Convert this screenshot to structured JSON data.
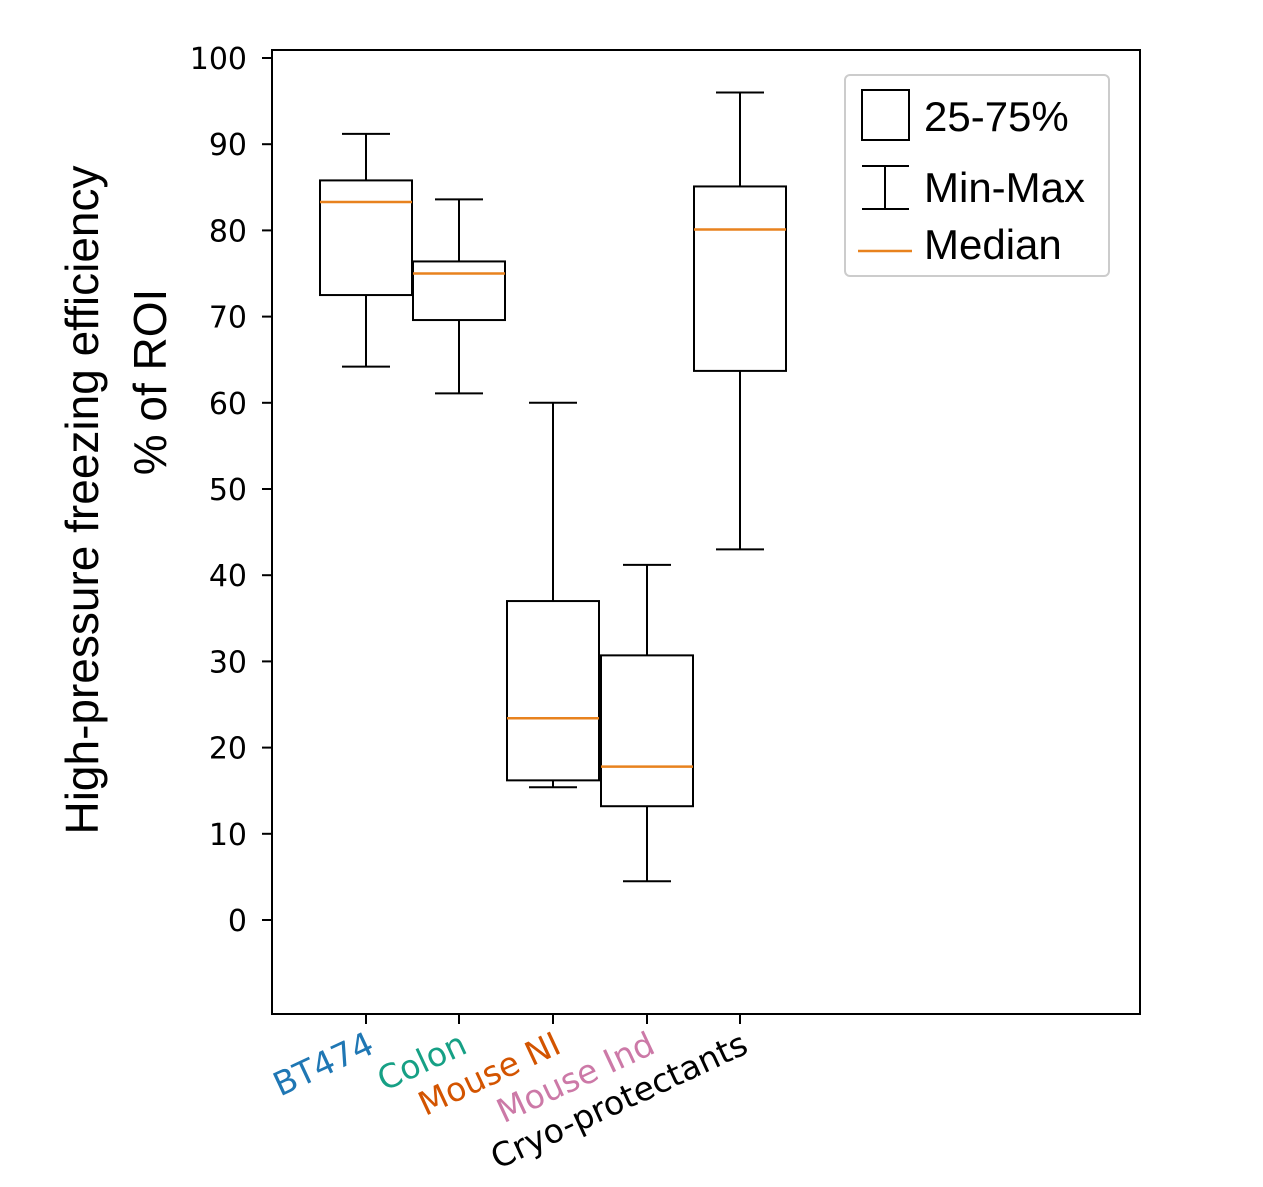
{
  "chart_data": {
    "type": "box",
    "ylabel_line1": "High-pressure freezing efficiency",
    "ylabel_line2": "% of ROI",
    "ylim": [
      -11,
      101
    ],
    "yticks": [
      0,
      10,
      20,
      30,
      40,
      50,
      60,
      70,
      80,
      90,
      100
    ],
    "categories": [
      "BT474",
      "Colon",
      "Mouse NI",
      "Mouse Ind",
      "Cryo-protectants"
    ],
    "category_colors": [
      "#1f77b4",
      "#16a085",
      "#d35400",
      "#cc79a7",
      "#000000"
    ],
    "boxes": [
      {
        "min": 64.2,
        "q1": 72.5,
        "median": 83.3,
        "q3": 85.8,
        "max": 91.2
      },
      {
        "min": 61.1,
        "q1": 69.6,
        "median": 75.0,
        "q3": 76.4,
        "max": 83.6
      },
      {
        "min": 15.4,
        "q1": 16.2,
        "median": 23.4,
        "q3": 37.0,
        "max": 60.0
      },
      {
        "min": 4.5,
        "q1": 13.2,
        "median": 17.8,
        "q3": 30.7,
        "max": 41.2
      },
      {
        "min": 43.0,
        "q1": 63.7,
        "median": 80.1,
        "q3": 85.1,
        "max": 96.0
      }
    ],
    "legend": {
      "position": "top-right",
      "items": [
        "25-75%",
        "Min-Max",
        "Median"
      ]
    },
    "median_color": "#e8821e"
  }
}
